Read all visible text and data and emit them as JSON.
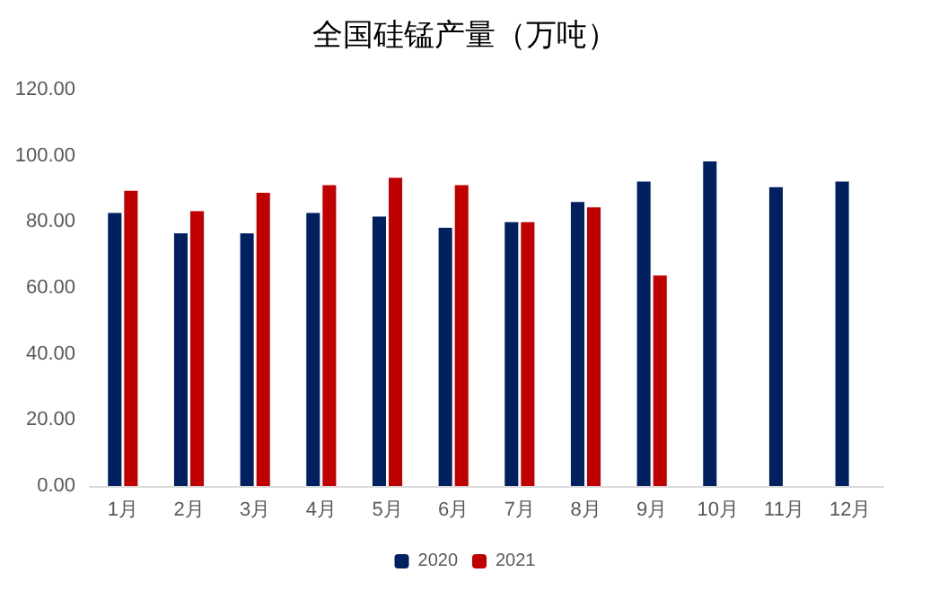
{
  "chart_data": {
    "type": "bar",
    "title": "全国硅锰产量（万吨）",
    "categories": [
      "1月",
      "2月",
      "3月",
      "4月",
      "5月",
      "6月",
      "7月",
      "8月",
      "9月",
      "10月",
      "11月",
      "12月"
    ],
    "series": [
      {
        "name": "2020",
        "color": "#002060",
        "values": [
          82.7,
          76.5,
          76.5,
          82.7,
          81.6,
          78.2,
          79.9,
          86.0,
          92.2,
          98.3,
          90.5,
          92.2
        ]
      },
      {
        "name": "2021",
        "color": "#c00000",
        "values": [
          89.4,
          83.2,
          88.8,
          91.1,
          93.3,
          91.1,
          79.9,
          84.4,
          63.7,
          null,
          null,
          null
        ]
      }
    ],
    "ylim": [
      0,
      120
    ],
    "yticks": [
      {
        "value": 0,
        "label": "0.00"
      },
      {
        "value": 20,
        "label": "20.00"
      },
      {
        "value": 40,
        "label": "40.00"
      },
      {
        "value": 60,
        "label": "60.00"
      },
      {
        "value": 80,
        "label": "80.00"
      },
      {
        "value": 100,
        "label": "100.00"
      },
      {
        "value": 120,
        "label": "120.00"
      }
    ],
    "grid": false,
    "legend": "bottom"
  }
}
